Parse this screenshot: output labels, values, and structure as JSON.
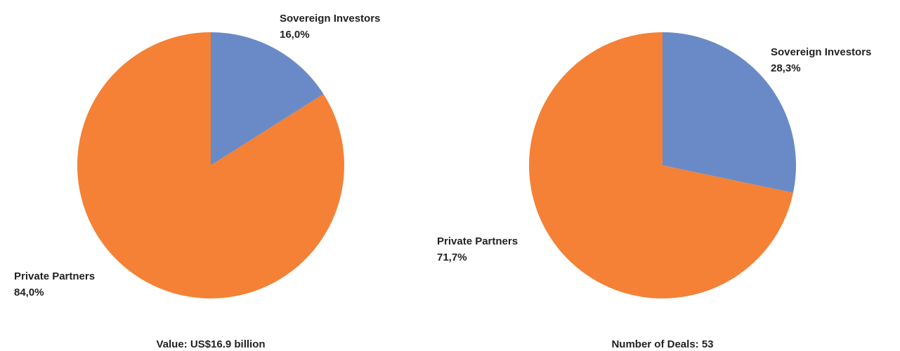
{
  "chart_data": [
    {
      "type": "pie",
      "title": "Value: US$16.9 billion",
      "categories": [
        "Sovereign Investors",
        "Private Partners"
      ],
      "values": [
        16.0,
        84.0
      ],
      "value_labels": [
        "16,0%",
        "84,0%"
      ],
      "colors": [
        "#6a8ac7",
        "#f48135"
      ]
    },
    {
      "type": "pie",
      "title": "Number of Deals: 53",
      "categories": [
        "Sovereign Investors",
        "Private Partners"
      ],
      "values": [
        28.3,
        71.7
      ],
      "value_labels": [
        "28,3%",
        "71,7%"
      ],
      "colors": [
        "#6a8ac7",
        "#f48135"
      ]
    }
  ]
}
